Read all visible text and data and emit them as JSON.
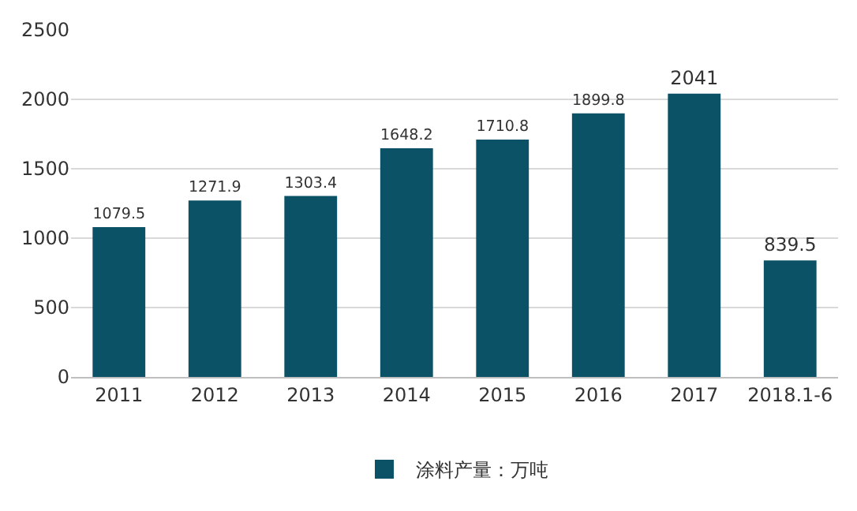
{
  "chart_data": {
    "type": "bar",
    "categories": [
      "2011",
      "2012",
      "2013",
      "2014",
      "2015",
      "2016",
      "2017",
      "2018.1-6"
    ],
    "series": [
      {
        "name": "涂料产量：万吨",
        "color": "#0b5266",
        "values": [
          1079.5,
          1271.9,
          1303.4,
          1648.2,
          1710.8,
          1899.8,
          2041,
          839.5
        ]
      }
    ],
    "ylim": [
      0,
      2500
    ],
    "yticks": [
      0,
      500,
      1000,
      1500,
      2000,
      2500
    ],
    "grid": "y",
    "legend": "bottom",
    "value_labels": [
      "1079.5",
      "1271.9",
      "1303.4",
      "1648.2",
      "1710.8",
      "1899.8",
      "2041",
      "839.5"
    ]
  }
}
